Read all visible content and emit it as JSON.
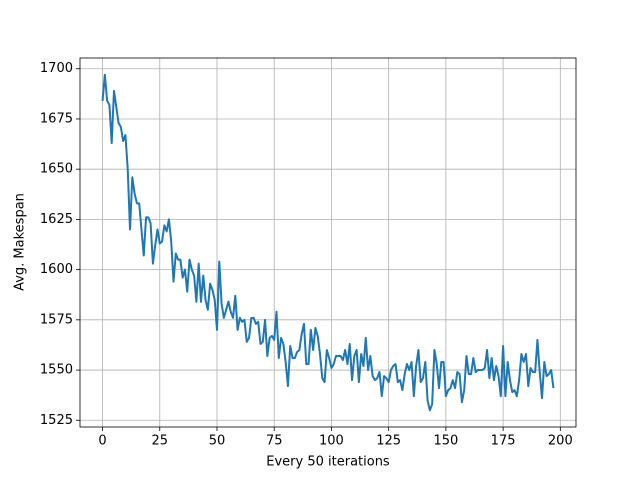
{
  "chart_data": {
    "type": "line",
    "x_label": "Every 50 iterations",
    "y_label": "Avg. Makespan",
    "x": [
      0,
      1,
      2,
      3,
      4,
      5,
      6,
      7,
      8,
      9,
      10,
      11,
      12,
      13,
      14,
      15,
      16,
      17,
      18,
      19,
      20,
      21,
      22,
      23,
      24,
      25,
      26,
      27,
      28,
      29,
      30,
      31,
      32,
      33,
      34,
      35,
      36,
      37,
      38,
      39,
      40,
      41,
      42,
      43,
      44,
      45,
      46,
      47,
      48,
      49,
      50,
      51,
      52,
      53,
      54,
      55,
      56,
      57,
      58,
      59,
      60,
      61,
      62,
      63,
      64,
      65,
      66,
      67,
      68,
      69,
      70,
      71,
      72,
      73,
      74,
      75,
      76,
      77,
      78,
      79,
      80,
      81,
      82,
      83,
      84,
      85,
      86,
      87,
      88,
      89,
      90,
      91,
      92,
      93,
      94,
      95,
      96,
      97,
      98,
      99,
      100,
      101,
      102,
      103,
      104,
      105,
      106,
      107,
      108,
      109,
      110,
      111,
      112,
      113,
      114,
      115,
      116,
      117,
      118,
      119,
      120,
      121,
      122,
      123,
      124,
      125,
      126,
      127,
      128,
      129,
      130,
      131,
      132,
      133,
      134,
      135,
      136,
      137,
      138,
      139,
      140,
      141,
      142,
      143,
      144,
      145,
      146,
      147,
      148,
      149,
      150,
      151,
      152,
      153,
      154,
      155,
      156,
      157,
      158,
      159,
      160,
      161,
      162,
      163,
      164,
      165,
      166,
      167,
      168,
      169,
      170,
      171,
      172,
      173,
      174,
      175,
      176,
      177,
      178,
      179,
      180,
      181,
      182,
      183,
      184,
      185,
      186,
      187,
      188,
      189,
      190,
      191,
      192,
      193,
      194,
      195,
      196,
      197
    ],
    "series": [
      {
        "color": "#1f77b4",
        "values": [
          1684,
          1697,
          1684,
          1682,
          1663,
          1689,
          1681,
          1673,
          1671,
          1664,
          1667,
          1650,
          1620,
          1646,
          1638,
          1633,
          1633,
          1620,
          1607,
          1626,
          1626,
          1623,
          1603,
          1612,
          1620,
          1613,
          1614,
          1622,
          1619,
          1625,
          1614,
          1594,
          1608,
          1605,
          1605,
          1596,
          1600,
          1589,
          1605,
          1600,
          1597,
          1584,
          1603,
          1584,
          1597,
          1585,
          1580,
          1593,
          1590,
          1585,
          1570,
          1604,
          1583,
          1576,
          1580,
          1584,
          1579,
          1576,
          1587,
          1570,
          1576,
          1574,
          1575,
          1564,
          1566,
          1576,
          1576,
          1573,
          1574,
          1563,
          1564,
          1575,
          1557,
          1566,
          1567,
          1565,
          1579,
          1556,
          1566,
          1563,
          1554,
          1542,
          1562,
          1556,
          1556,
          1559,
          1560,
          1568,
          1573,
          1553,
          1553,
          1570,
          1560,
          1571,
          1567,
          1558,
          1546,
          1544,
          1560,
          1556,
          1551,
          1553,
          1557,
          1557,
          1557,
          1555,
          1560,
          1553,
          1563,
          1545,
          1557,
          1560,
          1544,
          1558,
          1552,
          1566,
          1550,
          1557,
          1547,
          1545,
          1546,
          1549,
          1537,
          1547,
          1546,
          1544,
          1550,
          1552,
          1553,
          1544,
          1545,
          1540,
          1548,
          1553,
          1550,
          1554,
          1537,
          1552,
          1560,
          1544,
          1546,
          1554,
          1535,
          1530,
          1533,
          1560,
          1553,
          1541,
          1554,
          1554,
          1537,
          1540,
          1541,
          1545,
          1541,
          1549,
          1548,
          1534,
          1540,
          1557,
          1548,
          1548,
          1556,
          1549,
          1550,
          1550,
          1550,
          1551,
          1560,
          1546,
          1556,
          1545,
          1552,
          1547,
          1537,
          1562,
          1537,
          1554,
          1545,
          1539,
          1540,
          1537,
          1545,
          1558,
          1554,
          1558,
          1542,
          1551,
          1549,
          1549,
          1565,
          1549,
          1536,
          1554,
          1547,
          1548,
          1550,
          1541
        ]
      }
    ],
    "xlim": [
      -9.85,
      206.85
    ],
    "ylim": [
      1521.65,
      1705.35
    ],
    "xticks": [
      0,
      25,
      50,
      75,
      100,
      125,
      150,
      175,
      200
    ],
    "yticks": [
      1525,
      1550,
      1575,
      1600,
      1625,
      1650,
      1675,
      1700
    ],
    "grid": true
  }
}
